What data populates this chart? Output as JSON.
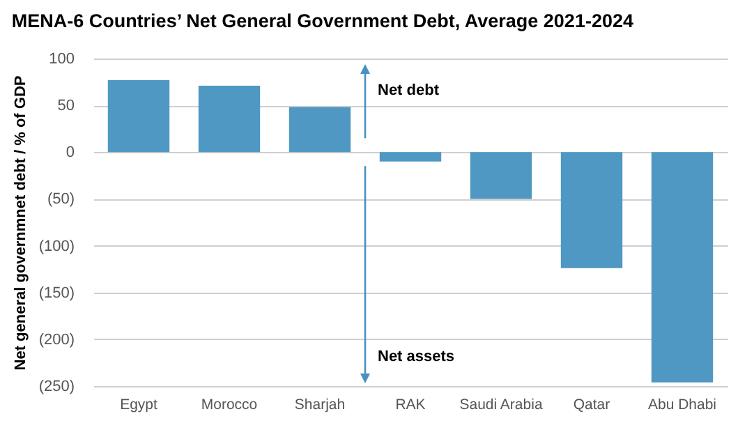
{
  "chart_data": {
    "type": "bar",
    "title": "MENA-6 Countries’ Net General Government Debt, Average 2021-2024",
    "ylabel": "Net general governmnet debt / % of GDP",
    "categories": [
      "Egypt",
      "Morocco",
      "Sharjah",
      "RAK",
      "Saudi Arabia",
      "Qatar",
      "Abu Dhabi"
    ],
    "values": [
      77,
      71,
      48,
      -10,
      -50,
      -124,
      -246
    ],
    "color": "#4f98c3",
    "ylim": [
      -250,
      100
    ],
    "yticks": [
      100,
      50,
      0,
      {
        "value": -50,
        "label": "(50)"
      },
      {
        "value": -100,
        "label": "(100)"
      },
      {
        "value": -150,
        "label": "(150)"
      },
      {
        "value": -200,
        "label": "(200)"
      },
      {
        "value": -250,
        "label": "(250)"
      }
    ],
    "grid": "y",
    "annotations": [
      "Net debt",
      "Net assets"
    ]
  }
}
